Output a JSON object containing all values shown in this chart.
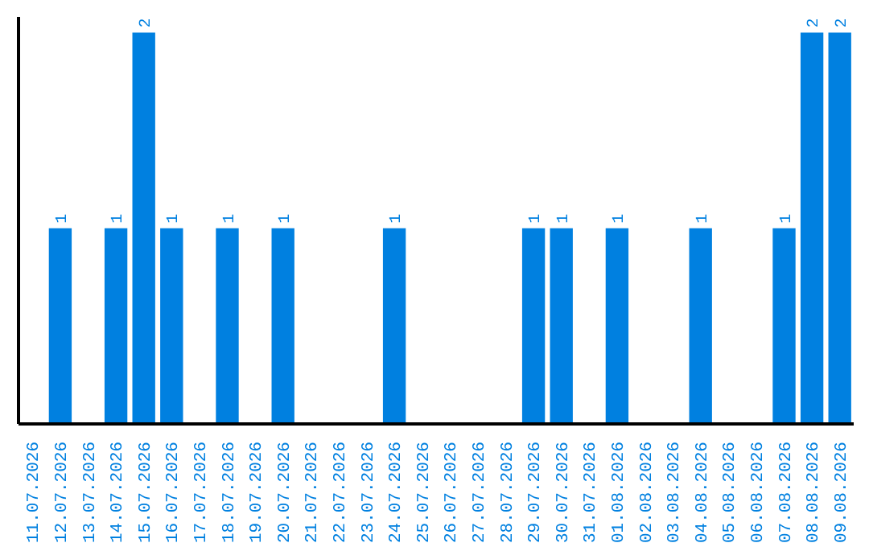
{
  "chart_data": {
    "type": "bar",
    "categories": [
      "11.07.2026",
      "12.07.2026",
      "13.07.2026",
      "14.07.2026",
      "15.07.2026",
      "16.07.2026",
      "17.07.2026",
      "18.07.2026",
      "19.07.2026",
      "20.07.2026",
      "21.07.2026",
      "22.07.2026",
      "23.07.2026",
      "24.07.2026",
      "25.07.2026",
      "26.07.2026",
      "27.07.2026",
      "28.07.2026",
      "29.07.2026",
      "30.07.2026",
      "31.07.2026",
      "01.08.2026",
      "02.08.2026",
      "03.08.2026",
      "04.08.2026",
      "05.08.2026",
      "06.08.2026",
      "07.08.2026",
      "08.08.2026",
      "09.08.2026"
    ],
    "values": [
      0,
      1,
      0,
      1,
      2,
      1,
      0,
      1,
      0,
      1,
      0,
      0,
      0,
      1,
      0,
      0,
      0,
      0,
      1,
      1,
      0,
      1,
      0,
      0,
      1,
      0,
      0,
      1,
      2,
      2
    ],
    "value_labels": [
      null,
      "1",
      null,
      "1",
      "2",
      "1",
      null,
      "1",
      null,
      "1",
      null,
      null,
      null,
      "1",
      null,
      null,
      null,
      null,
      "1",
      "1",
      null,
      "1",
      null,
      null,
      "1",
      null,
      null,
      "1",
      "2",
      "2"
    ],
    "color": "#0080e0",
    "ylim": [
      0,
      2.08
    ],
    "tick_labels": "x",
    "grid": false
  }
}
